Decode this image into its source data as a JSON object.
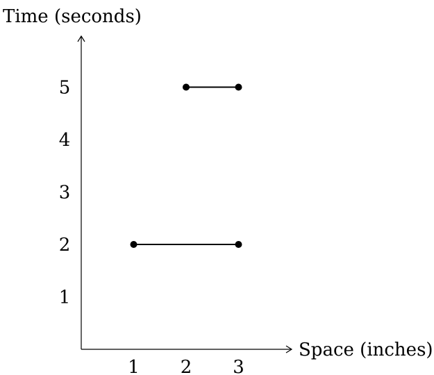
{
  "chart_data": {
    "type": "line",
    "ylabel": "Time (seconds)",
    "xlabel": "Space (inches)",
    "x_ticks": [
      "1",
      "2",
      "3"
    ],
    "y_ticks": [
      "1",
      "2",
      "3",
      "4",
      "5"
    ],
    "xlim": [
      0,
      3
    ],
    "ylim": [
      0,
      5.5
    ],
    "grid": false,
    "segments": [
      {
        "y": 2,
        "x_start": 1,
        "x_end": 3
      },
      {
        "y": 5,
        "x_start": 2,
        "x_end": 3
      }
    ]
  }
}
